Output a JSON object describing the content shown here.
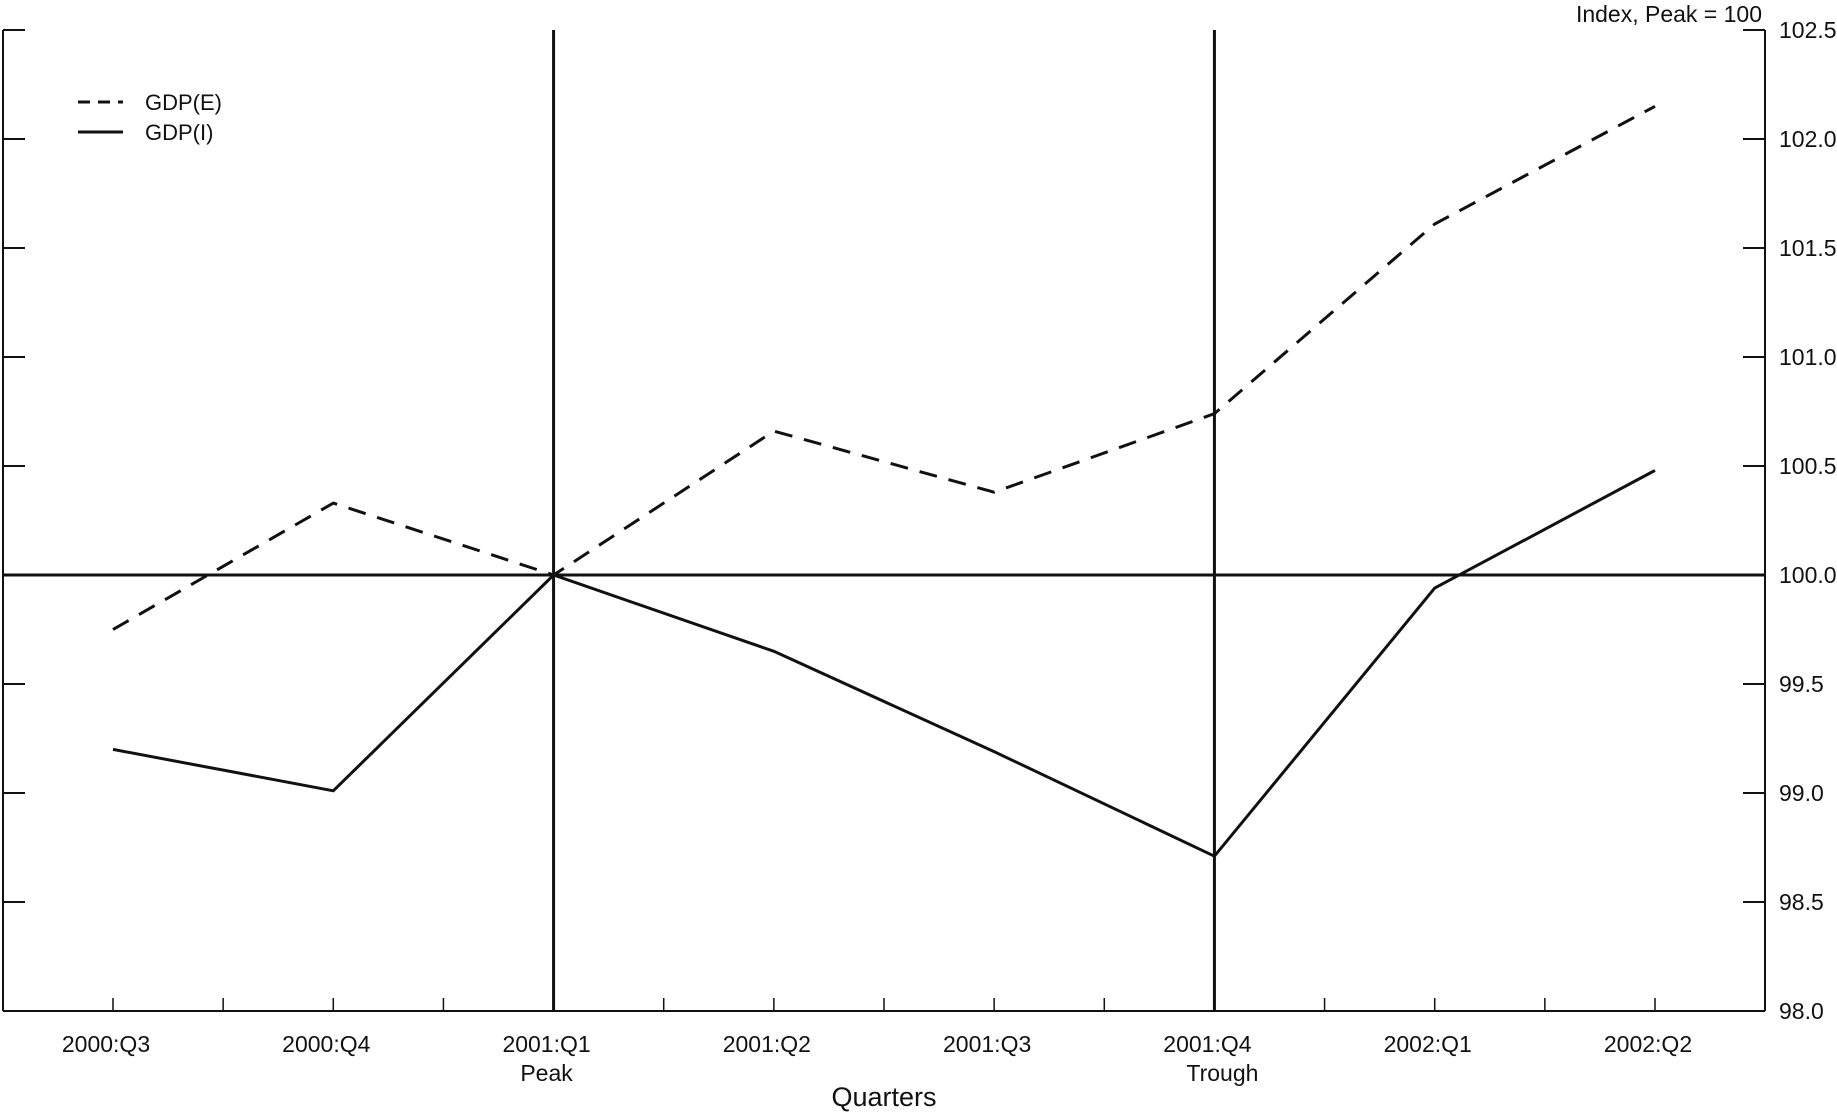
{
  "chart_data": {
    "type": "line",
    "title": "",
    "xlabel": "Quarters",
    "ylabel": "Index, Peak = 100",
    "categories": [
      "2000:Q3",
      "2000:Q4",
      "2001:Q1",
      "2001:Q2",
      "2001:Q3",
      "2001:Q4",
      "2002:Q1",
      "2002:Q2"
    ],
    "category_notes": [
      {
        "category": "2001:Q1",
        "text": "Peak"
      },
      {
        "category": "2001:Q4",
        "text": "Trough"
      }
    ],
    "vertical_lines": [
      "2001:Q1",
      "2001:Q4"
    ],
    "reference_line": 100.0,
    "ylim": [
      98.0,
      102.5
    ],
    "yticks": [
      98.0,
      98.5,
      99.0,
      99.5,
      100.0,
      100.5,
      101.0,
      101.5,
      102.0,
      102.5
    ],
    "ytick_labels": [
      "98.0",
      "98.5",
      "99.0",
      "99.5",
      "100.0",
      "100.5",
      "101.0",
      "101.5",
      "102.0",
      "102.5"
    ],
    "y_axis_side": "right",
    "legend_placement": "top-left",
    "grid": false,
    "series": [
      {
        "name": "GDP(E)",
        "style": "dashed",
        "color": "#111111",
        "values": [
          99.75,
          100.33,
          100.0,
          100.66,
          100.38,
          100.74,
          101.61,
          102.15
        ]
      },
      {
        "name": "GDP(I)",
        "style": "solid",
        "color": "#111111",
        "values": [
          99.2,
          99.01,
          100.0,
          99.65,
          99.19,
          98.71,
          99.94,
          100.48
        ]
      }
    ]
  }
}
